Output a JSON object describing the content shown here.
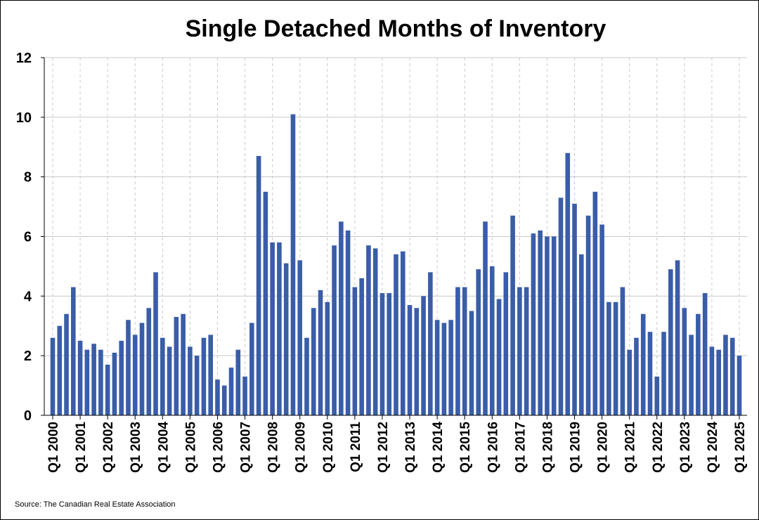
{
  "source": "Source: The Canadian Real Estate Association",
  "chart_data": {
    "type": "bar",
    "title": "Single Detached Months of Inventory",
    "xlabel": "",
    "ylabel": "",
    "ylim": [
      0,
      12
    ],
    "yticks": [
      0,
      2,
      4,
      6,
      8,
      10,
      12
    ],
    "grid": "horizontal solid, vertical dashed at Q1 of each year",
    "bar_color": "#3a5da8",
    "x_tick_labels": [
      "Q1 2000",
      "Q1 2001",
      "Q1 2002",
      "Q1 2003",
      "Q1 2004",
      "Q1 2005",
      "Q1 2006",
      "Q1 2007",
      "Q1 2008",
      "Q1 2009",
      "Q1 2010",
      "Q1 2011",
      "Q1 2012",
      "Q1 2013",
      "Q1 2014",
      "Q1 2015",
      "Q1 2016",
      "Q1 2017",
      "Q1 2018",
      "Q1 2019",
      "Q1 2020",
      "Q1 2021",
      "Q1 2022",
      "Q1 2023",
      "Q1 2024",
      "Q1 2025"
    ],
    "categories": [
      "Q1 2000",
      "Q2 2000",
      "Q3 2000",
      "Q4 2000",
      "Q1 2001",
      "Q2 2001",
      "Q3 2001",
      "Q4 2001",
      "Q1 2002",
      "Q2 2002",
      "Q3 2002",
      "Q4 2002",
      "Q1 2003",
      "Q2 2003",
      "Q3 2003",
      "Q4 2003",
      "Q1 2004",
      "Q2 2004",
      "Q3 2004",
      "Q4 2004",
      "Q1 2005",
      "Q2 2005",
      "Q3 2005",
      "Q4 2005",
      "Q1 2006",
      "Q2 2006",
      "Q3 2006",
      "Q4 2006",
      "Q1 2007",
      "Q2 2007",
      "Q3 2007",
      "Q4 2007",
      "Q1 2008",
      "Q2 2008",
      "Q3 2008",
      "Q4 2008",
      "Q1 2009",
      "Q2 2009",
      "Q3 2009",
      "Q4 2009",
      "Q1 2010",
      "Q2 2010",
      "Q3 2010",
      "Q4 2010",
      "Q1 2011",
      "Q2 2011",
      "Q3 2011",
      "Q4 2011",
      "Q1 2012",
      "Q2 2012",
      "Q3 2012",
      "Q4 2012",
      "Q1 2013",
      "Q2 2013",
      "Q3 2013",
      "Q4 2013",
      "Q1 2014",
      "Q2 2014",
      "Q3 2014",
      "Q4 2014",
      "Q1 2015",
      "Q2 2015",
      "Q3 2015",
      "Q4 2015",
      "Q1 2016",
      "Q2 2016",
      "Q3 2016",
      "Q4 2016",
      "Q1 2017",
      "Q2 2017",
      "Q3 2017",
      "Q4 2017",
      "Q1 2018",
      "Q2 2018",
      "Q3 2018",
      "Q4 2018",
      "Q1 2019",
      "Q2 2019",
      "Q3 2019",
      "Q4 2019",
      "Q1 2020",
      "Q2 2020",
      "Q3 2020",
      "Q4 2020",
      "Q1 2021",
      "Q2 2021",
      "Q3 2021",
      "Q4 2021",
      "Q1 2022",
      "Q2 2022",
      "Q3 2022",
      "Q4 2022",
      "Q1 2023",
      "Q2 2023",
      "Q3 2023",
      "Q4 2023",
      "Q1 2024",
      "Q2 2024",
      "Q3 2024",
      "Q4 2024",
      "Q1 2025"
    ],
    "values": [
      2.6,
      3.0,
      3.4,
      4.3,
      2.5,
      2.2,
      2.4,
      2.2,
      1.7,
      2.1,
      2.5,
      3.2,
      2.7,
      3.1,
      3.6,
      4.8,
      2.6,
      2.3,
      3.3,
      3.4,
      2.3,
      2.0,
      2.6,
      2.7,
      1.2,
      1.0,
      1.6,
      2.2,
      1.3,
      3.1,
      8.7,
      7.5,
      5.8,
      5.8,
      5.1,
      10.1,
      5.2,
      2.6,
      3.6,
      4.2,
      3.8,
      5.7,
      6.5,
      6.2,
      4.3,
      4.6,
      5.7,
      5.6,
      4.1,
      4.1,
      5.4,
      5.5,
      3.7,
      3.6,
      4.0,
      4.8,
      3.2,
      3.1,
      3.2,
      4.3,
      4.3,
      3.5,
      4.9,
      6.5,
      5.0,
      3.9,
      4.8,
      6.7,
      4.3,
      4.3,
      6.1,
      6.2,
      6.0,
      6.0,
      7.3,
      8.8,
      7.1,
      5.4,
      6.7,
      7.5,
      6.4,
      3.8,
      3.8,
      4.3,
      2.2,
      2.6,
      3.4,
      2.8,
      1.3,
      2.8,
      4.9,
      5.2,
      3.6,
      2.7,
      3.4,
      4.1,
      2.3,
      2.2,
      2.7,
      2.6,
      2.0
    ]
  }
}
